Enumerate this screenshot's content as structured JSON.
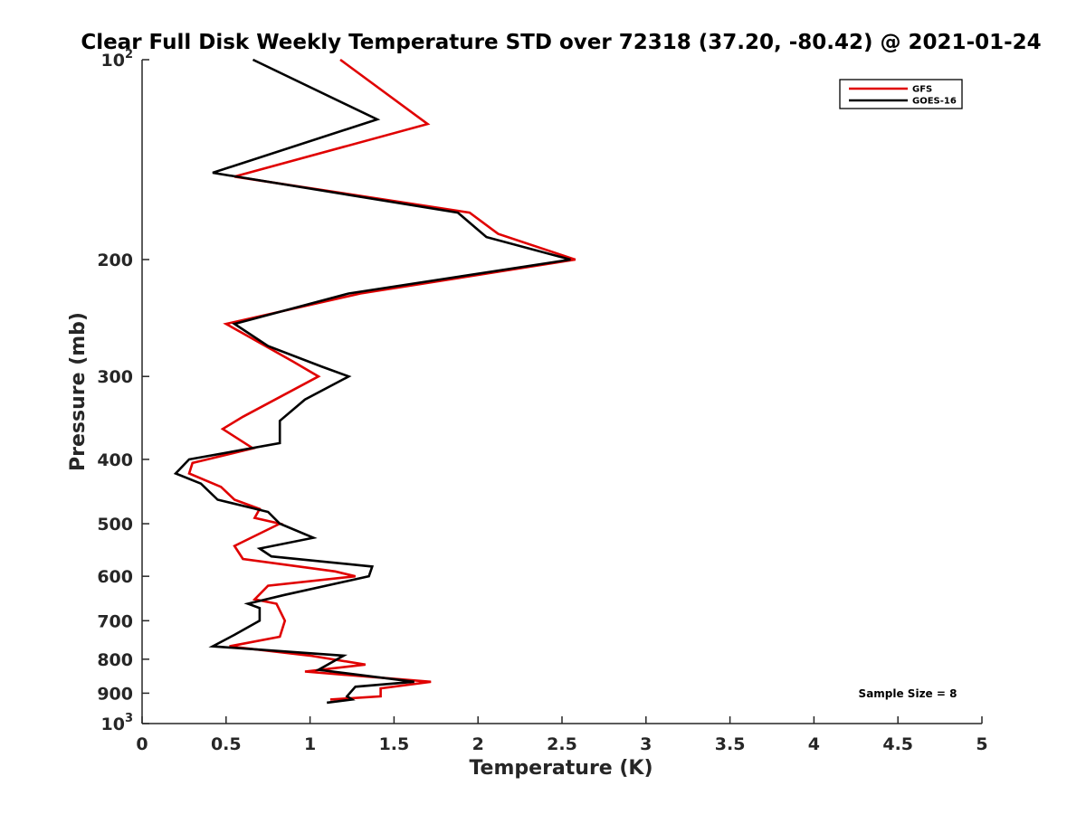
{
  "chart_data": {
    "type": "line",
    "title": "Clear Full Disk Weekly Temperature STD over 72318 (37.20, -80.42) @ 2021-01-24",
    "xlabel": "Temperature (K)",
    "ylabel": "Pressure (mb)",
    "xlim": [
      0,
      5
    ],
    "ylim": [
      100,
      1000
    ],
    "y_scale": "log",
    "y_reversed": true,
    "grid": false,
    "legend_position": "top-right",
    "x_ticks": [
      {
        "value": 0,
        "label": "0"
      },
      {
        "value": 0.5,
        "label": "0.5"
      },
      {
        "value": 1,
        "label": "1"
      },
      {
        "value": 1.5,
        "label": "1.5"
      },
      {
        "value": 2,
        "label": "2"
      },
      {
        "value": 2.5,
        "label": "2.5"
      },
      {
        "value": 3,
        "label": "3"
      },
      {
        "value": 3.5,
        "label": "3.5"
      },
      {
        "value": 4,
        "label": "4"
      },
      {
        "value": 4.5,
        "label": "4.5"
      },
      {
        "value": 5,
        "label": "5"
      }
    ],
    "y_ticks": [
      {
        "value": 100,
        "base": "10",
        "exp": "2"
      },
      {
        "value": 200,
        "label": "200"
      },
      {
        "value": 300,
        "label": "300"
      },
      {
        "value": 400,
        "label": "400"
      },
      {
        "value": 500,
        "label": "500"
      },
      {
        "value": 600,
        "label": "600"
      },
      {
        "value": 700,
        "label": "700"
      },
      {
        "value": 800,
        "label": "800"
      },
      {
        "value": 900,
        "label": "900"
      },
      {
        "value": 1000,
        "base": "10",
        "exp": "3"
      }
    ],
    "series": [
      {
        "name": "GFS",
        "color": "#e00000",
        "points": [
          [
            1.18,
            100
          ],
          [
            1.7,
            125
          ],
          [
            0.55,
            150
          ],
          [
            1.95,
            170
          ],
          [
            2.12,
            183
          ],
          [
            2.58,
            200
          ],
          [
            1.3,
            225
          ],
          [
            0.5,
            250
          ],
          [
            0.62,
            260
          ],
          [
            0.9,
            285
          ],
          [
            1.05,
            300
          ],
          [
            0.6,
            345
          ],
          [
            0.48,
            360
          ],
          [
            0.66,
            385
          ],
          [
            0.3,
            405
          ],
          [
            0.28,
            420
          ],
          [
            0.47,
            440
          ],
          [
            0.55,
            460
          ],
          [
            0.7,
            475
          ],
          [
            0.67,
            490
          ],
          [
            0.82,
            500
          ],
          [
            0.55,
            540
          ],
          [
            0.6,
            565
          ],
          [
            1.15,
            590
          ],
          [
            1.27,
            600
          ],
          [
            0.75,
            620
          ],
          [
            0.67,
            650
          ],
          [
            0.8,
            660
          ],
          [
            0.85,
            700
          ],
          [
            0.82,
            740
          ],
          [
            0.52,
            765
          ],
          [
            1.0,
            790
          ],
          [
            1.33,
            815
          ],
          [
            0.97,
            835
          ],
          [
            1.72,
            865
          ],
          [
            1.42,
            885
          ],
          [
            1.42,
            910
          ],
          [
            1.12,
            920
          ]
        ]
      },
      {
        "name": "GOES-16",
        "color": "#000000",
        "points": [
          [
            0.66,
            100
          ],
          [
            1.4,
            123
          ],
          [
            0.42,
            148
          ],
          [
            1.88,
            170
          ],
          [
            2.05,
            185
          ],
          [
            2.55,
            200
          ],
          [
            1.23,
            225
          ],
          [
            0.55,
            250
          ],
          [
            0.75,
            270
          ],
          [
            1.07,
            290
          ],
          [
            1.23,
            300
          ],
          [
            0.97,
            325
          ],
          [
            0.82,
            350
          ],
          [
            0.82,
            378
          ],
          [
            0.28,
            400
          ],
          [
            0.2,
            420
          ],
          [
            0.35,
            435
          ],
          [
            0.45,
            460
          ],
          [
            0.75,
            480
          ],
          [
            0.82,
            500
          ],
          [
            1.02,
            525
          ],
          [
            0.7,
            545
          ],
          [
            0.77,
            560
          ],
          [
            1.37,
            580
          ],
          [
            1.35,
            600
          ],
          [
            0.85,
            640
          ],
          [
            0.63,
            660
          ],
          [
            0.7,
            670
          ],
          [
            0.7,
            700
          ],
          [
            0.55,
            735
          ],
          [
            0.42,
            765
          ],
          [
            1.2,
            790
          ],
          [
            1.05,
            830
          ],
          [
            1.62,
            865
          ],
          [
            1.27,
            880
          ],
          [
            1.22,
            910
          ],
          [
            1.25,
            920
          ],
          [
            1.1,
            930
          ]
        ]
      }
    ],
    "annotations": [
      {
        "text": "Sample Size = 8",
        "position": "bottom-right"
      }
    ]
  }
}
